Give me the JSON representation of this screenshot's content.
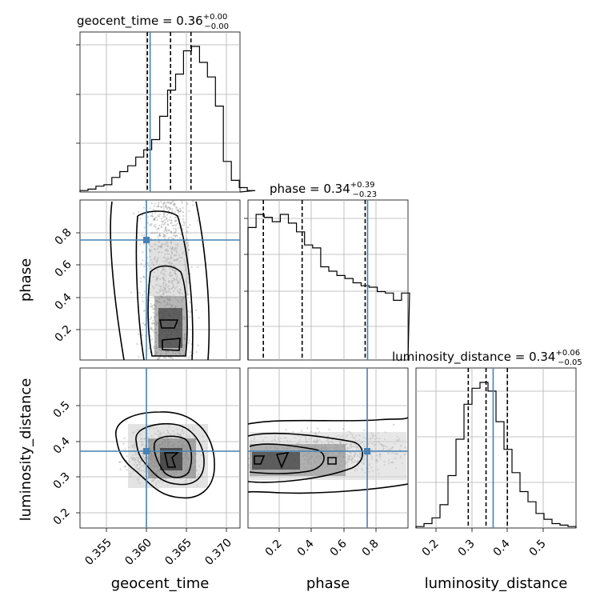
{
  "chart_data": {
    "type": "corner",
    "parameters": [
      "geocent_time",
      "phase",
      "luminosity_distance"
    ],
    "truths": {
      "geocent_time": 0.3608,
      "phase": 0.745,
      "luminosity_distance": 0.36
    },
    "ranges": {
      "geocent_time": [
        0.3505,
        0.374
      ],
      "phase": [
        0.005,
        0.995
      ],
      "luminosity_distance": [
        0.143,
        0.593
      ]
    },
    "ticks": {
      "geocent_time": [
        "0.355",
        "0.360",
        "0.365",
        "0.370"
      ],
      "phase": [
        "0.2",
        "0.4",
        "0.6",
        "0.8"
      ],
      "luminosity_distance": [
        "0.2",
        "0.3",
        "0.4",
        "0.5"
      ]
    },
    "titles": {
      "geocent_time": {
        "name": "geocent_time",
        "value": "0.36",
        "plus": "+0.00",
        "minus": "−0.00"
      },
      "phase": {
        "name": "phase",
        "value": "0.34",
        "plus": "+0.39",
        "minus": "−0.23"
      },
      "luminosity_distance": {
        "name": "luminosity_distance",
        "value": "0.34",
        "plus": "+0.06",
        "minus": "−0.05"
      }
    },
    "quantiles": {
      "geocent_time": [
        0.3604,
        0.3638,
        0.3668
      ],
      "phase": [
        0.1,
        0.34,
        0.73
      ],
      "luminosity_distance": [
        0.29,
        0.34,
        0.4
      ]
    },
    "histograms": {
      "geocent_time": {
        "edges_start": 0.3505,
        "bin_width": 0.00117,
        "counts": [
          0.01,
          0.02,
          0.04,
          0.05,
          0.1,
          0.14,
          0.18,
          0.24,
          0.29,
          0.36,
          0.52,
          0.7,
          0.81,
          0.97,
          1.0,
          0.89,
          0.79,
          0.59,
          0.21,
          0.08,
          0.03,
          0.01
        ]
      },
      "phase": {
        "edges_start": 0.005,
        "bin_width": 0.05,
        "counts": [
          0.91,
          1.0,
          0.98,
          0.95,
          1.0,
          0.94,
          0.88,
          0.79,
          0.77,
          0.64,
          0.61,
          0.58,
          0.56,
          0.53,
          0.51,
          0.5,
          0.47,
          0.46,
          0.41,
          0.46
        ]
      },
      "luminosity_distance": {
        "edges_start": 0.143,
        "bin_width": 0.0225,
        "counts": [
          0.01,
          0.03,
          0.07,
          0.16,
          0.36,
          0.61,
          0.85,
          0.96,
          1.0,
          0.94,
          0.73,
          0.54,
          0.38,
          0.25,
          0.18,
          0.1,
          0.06,
          0.03,
          0.02,
          0.01
        ]
      }
    }
  }
}
